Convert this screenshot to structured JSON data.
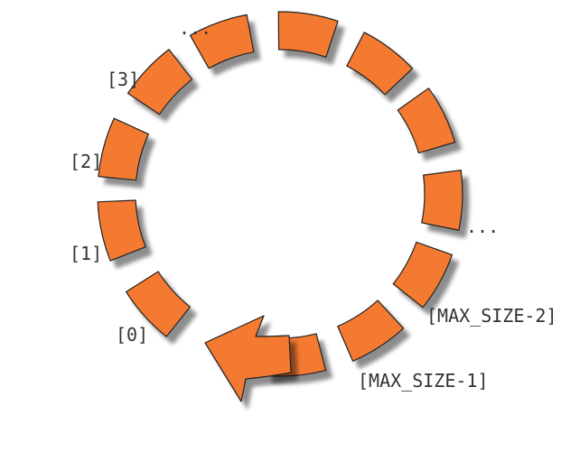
{
  "diagram": {
    "labels": {
      "index_0": "[0]",
      "index_1": "[1]",
      "index_2": "[2]",
      "index_3": "[3]",
      "ellipsis_top": "...",
      "ellipsis_right": "...",
      "max_size_minus_2": "[MAX_SIZE-2]",
      "max_size_minus_1": "[MAX_SIZE-1]"
    },
    "colors": {
      "segment_fill": "#f47a30",
      "segment_stroke": "#222222",
      "shadow": "#aaaaaa",
      "label_text": "#333333"
    }
  }
}
